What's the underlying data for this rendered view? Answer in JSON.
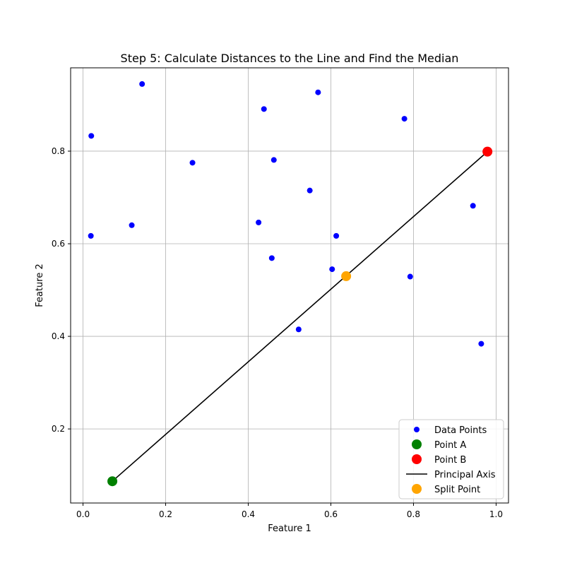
{
  "chart_data": {
    "type": "scatter",
    "title": "Step 5: Calculate Distances to the Line and Find the Median",
    "xlabel": "Feature 1",
    "ylabel": "Feature 2",
    "xlim": [
      -0.03,
      1.03
    ],
    "ylim": [
      0.04,
      0.98
    ],
    "xticks": [
      0.0,
      0.2,
      0.4,
      0.6,
      0.8,
      1.0
    ],
    "xtick_labels": [
      "0.0",
      "0.2",
      "0.4",
      "0.6",
      "0.8",
      "1.0"
    ],
    "yticks": [
      0.2,
      0.4,
      0.6,
      0.8
    ],
    "ytick_labels": [
      "0.2",
      "0.4",
      "0.6",
      "0.8"
    ],
    "grid": true,
    "legend_position": "bottom-right",
    "series": [
      {
        "name": "Data Points",
        "kind": "scatter",
        "color": "#0000ff",
        "points": [
          {
            "x": 0.143,
            "y": 0.945
          },
          {
            "x": 0.569,
            "y": 0.927
          },
          {
            "x": 0.438,
            "y": 0.891
          },
          {
            "x": 0.778,
            "y": 0.87
          },
          {
            "x": 0.02,
            "y": 0.833
          },
          {
            "x": 0.462,
            "y": 0.781
          },
          {
            "x": 0.265,
            "y": 0.775
          },
          {
            "x": 0.549,
            "y": 0.715
          },
          {
            "x": 0.944,
            "y": 0.682
          },
          {
            "x": 0.425,
            "y": 0.646
          },
          {
            "x": 0.118,
            "y": 0.64
          },
          {
            "x": 0.019,
            "y": 0.617
          },
          {
            "x": 0.613,
            "y": 0.617
          },
          {
            "x": 0.457,
            "y": 0.569
          },
          {
            "x": 0.603,
            "y": 0.545
          },
          {
            "x": 0.792,
            "y": 0.529
          },
          {
            "x": 0.522,
            "y": 0.415
          },
          {
            "x": 0.964,
            "y": 0.384
          }
        ]
      },
      {
        "name": "Point A",
        "kind": "marker",
        "color": "#008000",
        "points": [
          {
            "x": 0.071,
            "y": 0.087
          }
        ]
      },
      {
        "name": "Point B",
        "kind": "marker",
        "color": "#ff0000",
        "points": [
          {
            "x": 0.979,
            "y": 0.799
          }
        ]
      },
      {
        "name": "Principal Axis",
        "kind": "line",
        "color": "#000000",
        "points": [
          {
            "x": 0.071,
            "y": 0.087
          },
          {
            "x": 0.979,
            "y": 0.799
          }
        ]
      },
      {
        "name": "Split Point",
        "kind": "marker",
        "color": "#ffa500",
        "points": [
          {
            "x": 0.637,
            "y": 0.53
          }
        ]
      }
    ],
    "legend": [
      {
        "label": "Data Points",
        "kind": "scatter",
        "color": "#0000ff"
      },
      {
        "label": "Point A",
        "kind": "marker",
        "color": "#008000"
      },
      {
        "label": "Point B",
        "kind": "marker",
        "color": "#ff0000"
      },
      {
        "label": "Principal Axis",
        "kind": "line",
        "color": "#000000"
      },
      {
        "label": "Split Point",
        "kind": "marker",
        "color": "#ffa500"
      }
    ]
  }
}
